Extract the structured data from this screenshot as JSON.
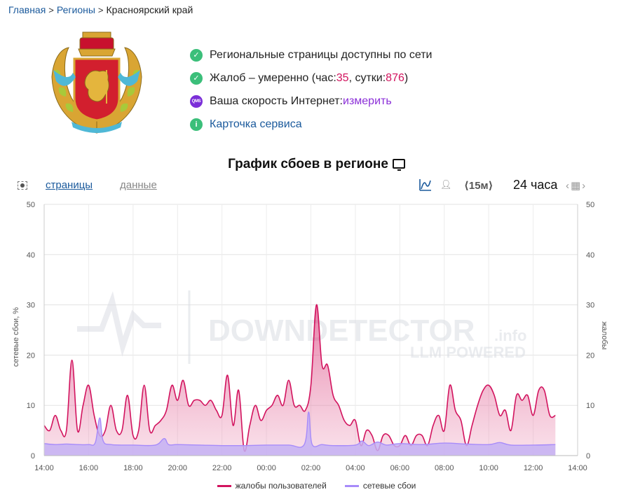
{
  "breadcrumb": {
    "home": "Главная",
    "regions": "Регионы",
    "current": "Красноярский край"
  },
  "status": {
    "pages_available": "Региональные страницы доступны по сети",
    "complaints_prefix": "Жалоб – умеренно (час: ",
    "complaints_hour": "35",
    "complaints_mid": ", сутки: ",
    "complaints_day": "876",
    "complaints_suffix": ")",
    "speed_prefix": "Ваша скорость Интернет: ",
    "speed_link": "измерить",
    "speed_badge": "QMS",
    "service_card": "Карточка сервиса"
  },
  "chart_title": "График сбоев в регионе",
  "toolbar": {
    "tab_pages": "страницы",
    "tab_data": "данные",
    "interval": "⟨15м⟩",
    "range": "24 часа"
  },
  "watermark": {
    "main": "DOWNDETECTOR",
    "suffix": ".info",
    "sub": "LLM POWERED"
  },
  "colors": {
    "complaints": "#d2135e",
    "complaints_fill": "#efa8c4",
    "outages": "#a78bfa",
    "outages_fill": "#c4b0f3",
    "link": "#1b5a9c",
    "status_green": "#3bbf7a"
  },
  "chart_data": {
    "type": "area",
    "xlabel": "",
    "ylabel_left": "сетевые сбои, %",
    "ylabel_right": "жалобы",
    "ylim": [
      0,
      50
    ],
    "yticks": [
      0,
      10,
      20,
      30,
      40,
      50
    ],
    "xticks": [
      "14:00",
      "16:00",
      "18:00",
      "20:00",
      "22:00",
      "00:00",
      "02:00",
      "04:00",
      "06:00",
      "08:00",
      "10:00",
      "12:00",
      "14:00"
    ],
    "x_hours_start": 0,
    "x_hours_end": 24,
    "series": [
      {
        "name": "жалобы пользователей",
        "points": [
          [
            0,
            6
          ],
          [
            0.25,
            5
          ],
          [
            0.5,
            8
          ],
          [
            0.75,
            5
          ],
          [
            1,
            5
          ],
          [
            1.25,
            19
          ],
          [
            1.5,
            5
          ],
          [
            1.75,
            10
          ],
          [
            2,
            14
          ],
          [
            2.25,
            8
          ],
          [
            2.5,
            4
          ],
          [
            2.75,
            5
          ],
          [
            3,
            10
          ],
          [
            3.25,
            5
          ],
          [
            3.5,
            5
          ],
          [
            3.75,
            12
          ],
          [
            4,
            4
          ],
          [
            4.25,
            5
          ],
          [
            4.5,
            14
          ],
          [
            4.75,
            5
          ],
          [
            5,
            6
          ],
          [
            5.25,
            7
          ],
          [
            5.5,
            9
          ],
          [
            5.75,
            14
          ],
          [
            6,
            11
          ],
          [
            6.25,
            15
          ],
          [
            6.5,
            10
          ],
          [
            6.75,
            11
          ],
          [
            7,
            11
          ],
          [
            7.25,
            10
          ],
          [
            7.5,
            11
          ],
          [
            7.75,
            9
          ],
          [
            8,
            8
          ],
          [
            8.25,
            16
          ],
          [
            8.5,
            6
          ],
          [
            8.75,
            13
          ],
          [
            9,
            1
          ],
          [
            9.25,
            6
          ],
          [
            9.5,
            10
          ],
          [
            9.75,
            7
          ],
          [
            10,
            9
          ],
          [
            10.25,
            10
          ],
          [
            10.5,
            12
          ],
          [
            10.75,
            10
          ],
          [
            11,
            15
          ],
          [
            11.25,
            10
          ],
          [
            11.5,
            10
          ],
          [
            11.75,
            9
          ],
          [
            12,
            14
          ],
          [
            12.25,
            30
          ],
          [
            12.5,
            18
          ],
          [
            12.75,
            18
          ],
          [
            13,
            12
          ],
          [
            13.25,
            10
          ],
          [
            13.5,
            7
          ],
          [
            13.75,
            6
          ],
          [
            14,
            7
          ],
          [
            14.25,
            2
          ],
          [
            14.5,
            5
          ],
          [
            14.75,
            4
          ],
          [
            15,
            1
          ],
          [
            15.25,
            4
          ],
          [
            15.5,
            4
          ],
          [
            15.75,
            2
          ],
          [
            16,
            2
          ],
          [
            16.25,
            4
          ],
          [
            16.5,
            2
          ],
          [
            16.75,
            4
          ],
          [
            17,
            4
          ],
          [
            17.25,
            2
          ],
          [
            17.5,
            6
          ],
          [
            17.75,
            8
          ],
          [
            18,
            5
          ],
          [
            18.25,
            14
          ],
          [
            18.5,
            9
          ],
          [
            18.75,
            7
          ],
          [
            19,
            2
          ],
          [
            19.25,
            6
          ],
          [
            19.5,
            10
          ],
          [
            19.75,
            13
          ],
          [
            20,
            14
          ],
          [
            20.25,
            12
          ],
          [
            20.5,
            8
          ],
          [
            20.75,
            9
          ],
          [
            21,
            5
          ],
          [
            21.25,
            12
          ],
          [
            21.5,
            11
          ],
          [
            21.75,
            12
          ],
          [
            22,
            8
          ],
          [
            22.25,
            13
          ],
          [
            22.5,
            13
          ],
          [
            22.75,
            8
          ],
          [
            23,
            8
          ]
        ]
      },
      {
        "name": "сетевые сбои",
        "points": [
          [
            0,
            2.4
          ],
          [
            0.5,
            2.2
          ],
          [
            1,
            2.3
          ],
          [
            1.5,
            2.2
          ],
          [
            2,
            2.2
          ],
          [
            2.3,
            2.6
          ],
          [
            2.5,
            7.5
          ],
          [
            2.65,
            3.0
          ],
          [
            3,
            2.2
          ],
          [
            4,
            2.1
          ],
          [
            5,
            2.1
          ],
          [
            5.4,
            3.4
          ],
          [
            5.6,
            2.2
          ],
          [
            6,
            2.2
          ],
          [
            7,
            2.1
          ],
          [
            8,
            2.0
          ],
          [
            9,
            2.0
          ],
          [
            10,
            2.1
          ],
          [
            11,
            2.1
          ],
          [
            11.7,
            2.2
          ],
          [
            11.9,
            8.7
          ],
          [
            12.05,
            2.3
          ],
          [
            12.5,
            2.2
          ],
          [
            13,
            2.0
          ],
          [
            14,
            2.1
          ],
          [
            14.3,
            2.9
          ],
          [
            14.6,
            2.0
          ],
          [
            15,
            2.7
          ],
          [
            15.4,
            2.1
          ],
          [
            16,
            2.4
          ],
          [
            17,
            2.2
          ],
          [
            18,
            2.5
          ],
          [
            19,
            2.3
          ],
          [
            20,
            2.2
          ],
          [
            20.5,
            2.6
          ],
          [
            21,
            2.1
          ],
          [
            22,
            2.1
          ],
          [
            23,
            2.2
          ]
        ]
      }
    ],
    "legend_position": "bottom",
    "grid": true
  }
}
